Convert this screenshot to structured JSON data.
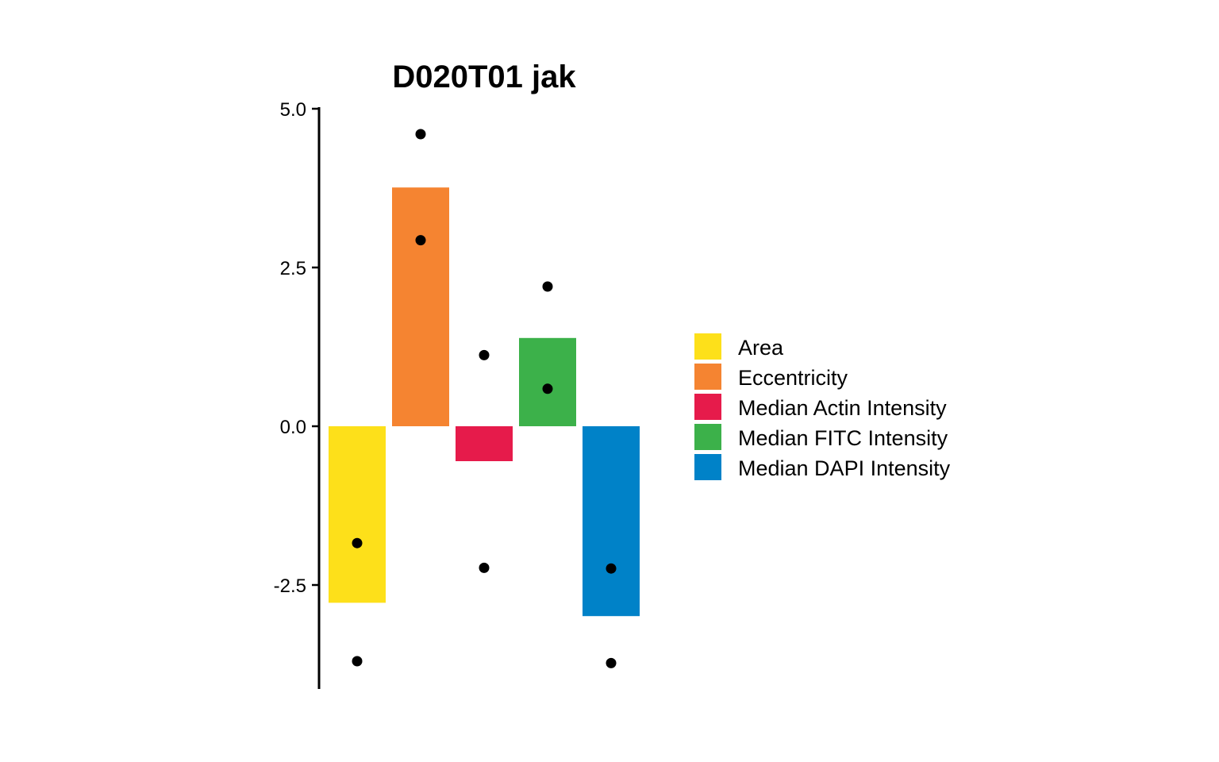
{
  "chart_data": {
    "type": "bar",
    "title": "D020T01 jak",
    "xlabel": "",
    "ylabel": "",
    "ylim": [
      -4.15,
      5.0
    ],
    "yticks": [
      5.0,
      2.5,
      0.0,
      -2.5
    ],
    "ytick_labels": [
      "5.0",
      "2.5",
      "0.0",
      "-2.5"
    ],
    "x_axis_visible": false,
    "grid": false,
    "legend_position": "right",
    "categories": [
      "Area",
      "Eccentricity",
      "Median Actin Intensity",
      "Median FITC Intensity",
      "Median DAPI Intensity"
    ],
    "values": [
      -2.78,
      3.76,
      -0.55,
      1.39,
      -2.99
    ],
    "colors": [
      "#FDE01A",
      "#F58431",
      "#E61B4B",
      "#3CB14A",
      "#0082C8"
    ],
    "points": [
      [
        -1.84,
        -3.7
      ],
      [
        4.6,
        2.93
      ],
      [
        1.12,
        -2.23
      ],
      [
        2.2,
        0.59
      ],
      [
        -2.24,
        -3.73
      ]
    ],
    "legend": [
      "Area",
      "Eccentricity",
      "Median Actin Intensity",
      "Median FITC Intensity",
      "Median DAPI Intensity"
    ]
  }
}
